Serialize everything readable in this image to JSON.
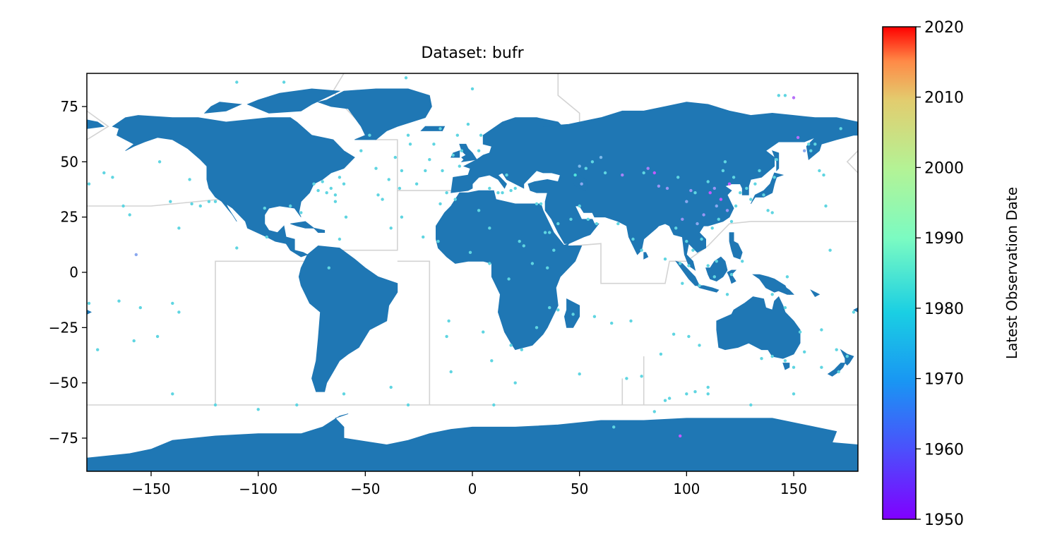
{
  "chart_data": {
    "type": "scatter",
    "title": "Dataset: bufr",
    "xlim": [
      -180,
      180
    ],
    "ylim": [
      -90,
      90
    ],
    "x_ticks": [
      -150,
      -100,
      -50,
      0,
      50,
      100,
      150
    ],
    "x_tick_labels": [
      "−150",
      "−100",
      "−50",
      "0",
      "50",
      "100",
      "150"
    ],
    "y_ticks": [
      75,
      50,
      25,
      0,
      -25,
      -50,
      -75
    ],
    "y_tick_labels": [
      "75",
      "50",
      "25",
      "0",
      "−25",
      "−50",
      "−75"
    ],
    "colorbar": {
      "label": "Latest Observation Date",
      "range": [
        1950,
        2020
      ],
      "ticks": [
        1950,
        1960,
        1970,
        1980,
        1990,
        2000,
        2010,
        2020
      ],
      "tick_labels": [
        "1950",
        "1960",
        "1970",
        "1980",
        "1990",
        "2000",
        "2010",
        "2020"
      ],
      "colormap": "rainbow"
    },
    "colors": {
      "land": "#1f77b4",
      "boundary": "#d3d3d3"
    },
    "points": [
      [
        -179,
        40,
        1972
      ],
      [
        -172,
        45,
        1972
      ],
      [
        -168,
        43,
        1972
      ],
      [
        -175,
        -35,
        1972
      ],
      [
        -163,
        30,
        1972
      ],
      [
        -160,
        26,
        1972
      ],
      [
        -157,
        8,
        1966
      ],
      [
        -165,
        -13,
        1972
      ],
      [
        -155,
        -16,
        1972
      ],
      [
        -158,
        -31,
        1972
      ],
      [
        -147,
        -29,
        1972
      ],
      [
        -146,
        50,
        1972
      ],
      [
        -141,
        32,
        1972
      ],
      [
        -140,
        -14,
        1972
      ],
      [
        -137,
        -18,
        1972
      ],
      [
        -137,
        20,
        1972
      ],
      [
        -132,
        42,
        1972
      ],
      [
        -131,
        31,
        1972
      ],
      [
        -127,
        30,
        1972
      ],
      [
        -123,
        32,
        1972
      ],
      [
        -120,
        32,
        1972
      ],
      [
        -110,
        86,
        1972
      ],
      [
        -110,
        11,
        1972
      ],
      [
        -100,
        -62,
        1972
      ],
      [
        -97,
        29,
        1972
      ],
      [
        -96,
        16,
        1972
      ],
      [
        -88,
        86,
        1972
      ],
      [
        -85,
        30,
        1972
      ],
      [
        -80,
        27,
        1972
      ],
      [
        -82,
        -60,
        1972
      ],
      [
        -74,
        40,
        1972
      ],
      [
        -72,
        37,
        1972
      ],
      [
        -70,
        41,
        1972
      ],
      [
        -68,
        36,
        1972
      ],
      [
        -66,
        38,
        1972
      ],
      [
        -64,
        35,
        1972
      ],
      [
        -64,
        32,
        1972
      ],
      [
        -60,
        40,
        1972
      ],
      [
        -62,
        43,
        1972
      ],
      [
        -59,
        25,
        1972
      ],
      [
        -62,
        15,
        1972
      ],
      [
        -67,
        2,
        1972
      ],
      [
        -52,
        55,
        1972
      ],
      [
        -48,
        62,
        1972
      ],
      [
        -45,
        47,
        1972
      ],
      [
        -44,
        35,
        1972
      ],
      [
        -42,
        33,
        1972
      ],
      [
        -39,
        42,
        1972
      ],
      [
        -38,
        20,
        1972
      ],
      [
        -36,
        52,
        1972
      ],
      [
        -34,
        38,
        1972
      ],
      [
        -33,
        25,
        1972
      ],
      [
        -33,
        46,
        1972
      ],
      [
        -31,
        88,
        1972
      ],
      [
        -30,
        62,
        1972
      ],
      [
        -29,
        58,
        1972
      ],
      [
        -26,
        40,
        1972
      ],
      [
        -22,
        46,
        1972
      ],
      [
        -20,
        51,
        1972
      ],
      [
        -18,
        58,
        1972
      ],
      [
        -15,
        65,
        1972
      ],
      [
        -14,
        46,
        1972
      ],
      [
        -12,
        36,
        1972
      ],
      [
        -9,
        53,
        1972
      ],
      [
        -7,
        62,
        1972
      ],
      [
        -6,
        48,
        1972
      ],
      [
        -5,
        55,
        1972
      ],
      [
        -11,
        -22,
        1972
      ],
      [
        -12,
        -29,
        1972
      ],
      [
        -15,
        31,
        1972
      ],
      [
        0,
        83,
        1972
      ],
      [
        -2,
        67,
        1972
      ],
      [
        3,
        55,
        1972
      ],
      [
        4,
        62,
        1972
      ],
      [
        5,
        -27,
        1972
      ],
      [
        8,
        38,
        1972
      ],
      [
        9,
        -40,
        1972
      ],
      [
        12,
        36,
        1972
      ],
      [
        14,
        36,
        1972
      ],
      [
        16,
        44,
        1972
      ],
      [
        18,
        37,
        1972
      ],
      [
        20,
        38,
        1972
      ],
      [
        22,
        14,
        1972
      ],
      [
        24,
        12,
        1972
      ],
      [
        23,
        -35,
        1972
      ],
      [
        30,
        31,
        1972
      ],
      [
        32,
        31,
        1972
      ],
      [
        34,
        18,
        1972
      ],
      [
        36,
        18,
        1972
      ],
      [
        38,
        10,
        1972
      ],
      [
        40,
        -17,
        1972
      ],
      [
        48,
        44,
        1974
      ],
      [
        50,
        48,
        1968
      ],
      [
        51,
        40,
        1966
      ],
      [
        53,
        47,
        1972
      ],
      [
        56,
        50,
        1972
      ],
      [
        60,
        52,
        1968
      ],
      [
        62,
        45,
        1972
      ],
      [
        65,
        -23,
        1972
      ],
      [
        66,
        -70,
        1972
      ],
      [
        70,
        44,
        1962
      ],
      [
        72,
        -48,
        1972
      ],
      [
        74,
        -22,
        1972
      ],
      [
        79,
        -47,
        1972
      ],
      [
        80,
        45,
        1972
      ],
      [
        82,
        47,
        1962
      ],
      [
        85,
        45,
        1958
      ],
      [
        87,
        39,
        1964
      ],
      [
        88,
        -37,
        1972
      ],
      [
        90,
        6,
        1972
      ],
      [
        91,
        38,
        1964
      ],
      [
        94,
        -28,
        1972
      ],
      [
        96,
        43,
        1972
      ],
      [
        97,
        -74,
        1958
      ],
      [
        98,
        24,
        1964
      ],
      [
        100,
        32,
        1966
      ],
      [
        101,
        -29,
        1972
      ],
      [
        102,
        37,
        1964
      ],
      [
        104,
        36,
        1972
      ],
      [
        105,
        22,
        1966
      ],
      [
        106,
        -33,
        1972
      ],
      [
        107,
        15,
        1972
      ],
      [
        108,
        26,
        1964
      ],
      [
        110,
        41,
        1972
      ],
      [
        111,
        36,
        1958
      ],
      [
        112,
        20,
        1972
      ],
      [
        113,
        38,
        1964
      ],
      [
        114,
        30,
        1966
      ],
      [
        115,
        24,
        1972
      ],
      [
        116,
        33,
        1958
      ],
      [
        117,
        46,
        1972
      ],
      [
        118,
        50,
        1972
      ],
      [
        119,
        28,
        1964
      ],
      [
        120,
        40,
        1958
      ],
      [
        121,
        23,
        1972
      ],
      [
        122,
        43,
        1972
      ],
      [
        123,
        30,
        1972
      ],
      [
        125,
        36,
        1972
      ],
      [
        128,
        38,
        1972
      ],
      [
        130,
        33,
        1972
      ],
      [
        132,
        40,
        1972
      ],
      [
        134,
        46,
        1972
      ],
      [
        136,
        35,
        1972
      ],
      [
        138,
        28,
        1972
      ],
      [
        140,
        27,
        1972
      ],
      [
        141,
        43,
        1972
      ],
      [
        142,
        51,
        1972
      ],
      [
        143,
        80,
        1972
      ],
      [
        146,
        80,
        1972
      ],
      [
        150,
        79,
        1960
      ],
      [
        152,
        61,
        1960
      ],
      [
        155,
        55,
        1966
      ],
      [
        157,
        58,
        1972
      ],
      [
        158,
        55,
        1972
      ],
      [
        160,
        58,
        1972
      ],
      [
        162,
        46,
        1972
      ],
      [
        164,
        44,
        1972
      ],
      [
        165,
        30,
        1972
      ],
      [
        167,
        10,
        1972
      ],
      [
        170,
        -35,
        1972
      ],
      [
        171,
        -45,
        1972
      ],
      [
        172,
        65,
        1972
      ],
      [
        175,
        -38,
        1972
      ],
      [
        178,
        -18,
        1972
      ],
      [
        -179,
        -14,
        1972
      ],
      [
        150,
        -43,
        1972
      ],
      [
        146,
        -40,
        1972
      ],
      [
        140,
        -38,
        1972
      ],
      [
        135,
        -39,
        1972
      ],
      [
        153,
        -27,
        1972
      ],
      [
        163,
        -26,
        1972
      ],
      [
        155,
        -36,
        1972
      ],
      [
        163,
        -43,
        1972
      ],
      [
        146,
        -16,
        1972
      ],
      [
        147,
        -2,
        1972
      ],
      [
        140,
        -10,
        1972
      ],
      [
        126,
        5,
        1972
      ],
      [
        114,
        5,
        1972
      ],
      [
        110,
        3,
        1972
      ],
      [
        106,
        -6,
        1972
      ],
      [
        113,
        -2,
        1972
      ],
      [
        119,
        -10,
        1972
      ],
      [
        121,
        -1,
        1972
      ],
      [
        101,
        3,
        1972
      ],
      [
        95,
        20,
        1972
      ],
      [
        100,
        14,
        1972
      ],
      [
        97,
        4,
        1972
      ],
      [
        103,
        10,
        1972
      ],
      [
        98,
        -5,
        1972
      ],
      [
        79,
        10,
        1972
      ],
      [
        75,
        15,
        1972
      ],
      [
        68,
        22,
        1972
      ],
      [
        54,
        24,
        1972
      ],
      [
        58,
        22,
        1972
      ],
      [
        50,
        30,
        1972
      ],
      [
        46,
        24,
        1972
      ],
      [
        40,
        22,
        1972
      ],
      [
        35,
        2,
        1972
      ],
      [
        28,
        4,
        1972
      ],
      [
        17,
        -3,
        1972
      ],
      [
        8,
        4,
        1972
      ],
      [
        -1,
        9,
        1972
      ],
      [
        -16,
        14,
        1972
      ],
      [
        -23,
        16,
        1972
      ],
      [
        8,
        20,
        1972
      ],
      [
        3,
        28,
        1972
      ],
      [
        -8,
        33,
        1972
      ],
      [
        30,
        -25,
        1972
      ],
      [
        18,
        -33,
        1972
      ],
      [
        47,
        -19,
        1972
      ],
      [
        57,
        -20,
        1972
      ],
      [
        36,
        -16,
        1972
      ],
      [
        -38,
        -52,
        1972
      ],
      [
        -10,
        -45,
        1972
      ],
      [
        20,
        -50,
        1972
      ],
      [
        50,
        -46,
        1972
      ],
      [
        90,
        -58,
        1972
      ],
      [
        110,
        -55,
        1972
      ],
      [
        130,
        -60,
        1972
      ],
      [
        150,
        -55,
        1972
      ],
      [
        -140,
        -55,
        1972
      ],
      [
        -120,
        -60,
        1972
      ],
      [
        -60,
        -55,
        1972
      ],
      [
        -30,
        -60,
        1972
      ],
      [
        10,
        -60,
        1972
      ],
      [
        85,
        -63,
        1972
      ],
      [
        92,
        -57,
        1972
      ],
      [
        100,
        -55,
        1972
      ],
      [
        104,
        -54,
        1972
      ],
      [
        110,
        -52,
        1972
      ]
    ]
  }
}
